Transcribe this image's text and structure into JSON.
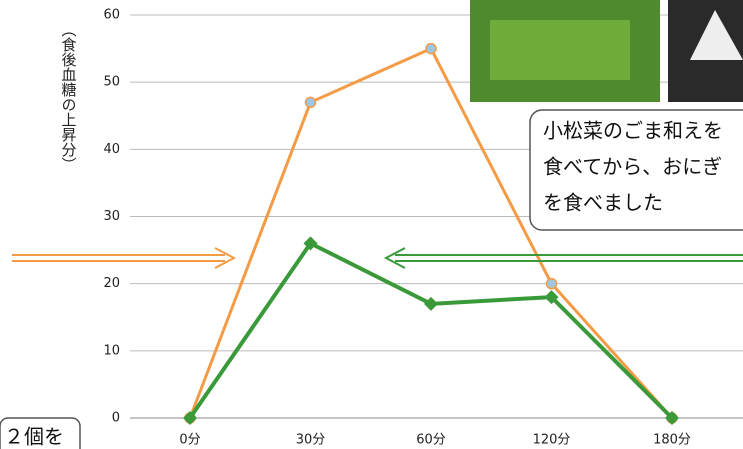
{
  "chart_data": {
    "type": "line",
    "y_label": "（食後血糖の上昇分）",
    "categories": [
      "0分",
      "30分",
      "60分",
      "120分",
      "180分"
    ],
    "series": [
      {
        "color": "#f59a45",
        "values": [
          0,
          47,
          55,
          20,
          0
        ]
      },
      {
        "color": "#3a9a3a",
        "values": [
          0,
          26,
          17,
          18,
          0
        ]
      }
    ],
    "ylim": [
      0,
      60
    ],
    "yticks": [
      0,
      10,
      20,
      30,
      40,
      50,
      60
    ],
    "grid": true,
    "annotations": [
      "小松菜のごま和えを",
      "食べてから、おにぎ",
      "を食べました",
      "２個を"
    ]
  }
}
